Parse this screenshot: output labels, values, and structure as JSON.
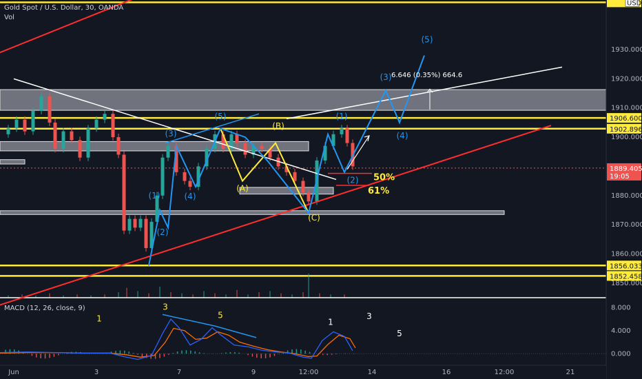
{
  "header": {
    "symbol": "Gold Spot / U.S. Dollar, 30, OANDA",
    "vol_label": "Vol",
    "macd_label": "MACD (12, 26, close, 9)"
  },
  "currency_badge": "USD",
  "chart_data": {
    "type": "line",
    "price_axis": {
      "ylim": [
        1845,
        1947
      ],
      "ticks": [
        {
          "v": 1930,
          "t": "1930.000"
        },
        {
          "v": 1920,
          "t": "1920.000"
        },
        {
          "v": 1910,
          "t": "1910.000"
        },
        {
          "v": 1900,
          "t": "1900.000"
        },
        {
          "v": 1880,
          "t": "1880.000"
        },
        {
          "v": 1870,
          "t": "1870.000"
        },
        {
          "v": 1860,
          "t": "1860.000"
        },
        {
          "v": 1850,
          "t": "1850.000"
        }
      ]
    },
    "macd_axis": {
      "ylim": [
        -2,
        9
      ],
      "ticks": [
        {
          "v": 8,
          "t": "8.000"
        },
        {
          "v": 4,
          "t": "4.000"
        },
        {
          "v": 0,
          "t": "0.000"
        }
      ]
    },
    "time_axis": [
      {
        "x": 0.5,
        "t": "Jun"
      },
      {
        "x": 3.5,
        "t": "3"
      },
      {
        "x": 6.5,
        "t": "7"
      },
      {
        "x": 9.2,
        "t": "9"
      },
      {
        "x": 11.2,
        "t": "12:00"
      },
      {
        "x": 13.5,
        "t": "14"
      },
      {
        "x": 16.2,
        "t": "16"
      },
      {
        "x": 18.3,
        "t": "12:00"
      },
      {
        "x": 20.7,
        "t": "21"
      }
    ],
    "x_range": [
      0,
      22
    ],
    "horizontal_levels": [
      {
        "price": 1946.2,
        "label": "",
        "color": "#ffeb3b"
      },
      {
        "price": 1906.6,
        "label": "1906.600",
        "color": "#ffeb3b"
      },
      {
        "price": 1902.896,
        "label": "1902.896",
        "color": "#ffeb3b"
      },
      {
        "price": 1856.033,
        "label": "1856.033",
        "color": "#ffeb3b"
      },
      {
        "price": 1852.458,
        "label": "1852.458",
        "color": "#ffeb3b"
      }
    ],
    "current_price": {
      "value": 1889.405,
      "label": "1889.405",
      "timer": "19:05"
    },
    "zones": [
      {
        "x0": 0,
        "x1": 22.2,
        "top": 1916.3,
        "bottom": 1909.2
      },
      {
        "x0": 0,
        "x1": 11.2,
        "top": 1898.5,
        "bottom": 1895.3
      },
      {
        "x0": 8.7,
        "x1": 12.1,
        "top": 1882.8,
        "bottom": 1880.5
      },
      {
        "x0": 0,
        "x1": 18.3,
        "top": 1874.8,
        "bottom": 1873.5
      },
      {
        "x0": 0,
        "x1": 0.9,
        "top": 1892.3,
        "bottom": 1890.8
      }
    ],
    "price_series": [
      [
        0.0,
        1901
      ],
      [
        0.3,
        1903
      ],
      [
        0.6,
        1906
      ],
      [
        0.9,
        1902
      ],
      [
        1.2,
        1909
      ],
      [
        1.5,
        1914
      ],
      [
        1.8,
        1905
      ],
      [
        2.0,
        1896
      ],
      [
        2.3,
        1902
      ],
      [
        2.6,
        1899
      ],
      [
        2.9,
        1893
      ],
      [
        3.2,
        1903
      ],
      [
        3.5,
        1906
      ],
      [
        3.8,
        1908
      ],
      [
        4.1,
        1900
      ],
      [
        4.3,
        1894
      ],
      [
        4.5,
        1868
      ],
      [
        4.7,
        1872
      ],
      [
        4.9,
        1869
      ],
      [
        5.1,
        1872
      ],
      [
        5.3,
        1862
      ],
      [
        5.5,
        1871
      ],
      [
        5.7,
        1880
      ],
      [
        5.9,
        1893
      ],
      [
        6.1,
        1897
      ],
      [
        6.4,
        1888
      ],
      [
        6.7,
        1885
      ],
      [
        6.9,
        1883
      ],
      [
        7.2,
        1890
      ],
      [
        7.5,
        1896
      ],
      [
        7.8,
        1901
      ],
      [
        8.1,
        1896
      ],
      [
        8.4,
        1901
      ],
      [
        8.6,
        1898
      ],
      [
        8.9,
        1894
      ],
      [
        9.2,
        1897
      ],
      [
        9.5,
        1896
      ],
      [
        9.8,
        1893
      ],
      [
        10.1,
        1890
      ],
      [
        10.4,
        1888
      ],
      [
        10.7,
        1885
      ],
      [
        11.0,
        1881
      ],
      [
        11.2,
        1878
      ],
      [
        11.5,
        1892
      ],
      [
        11.8,
        1897
      ],
      [
        12.1,
        1901
      ],
      [
        12.4,
        1903
      ],
      [
        12.6,
        1898
      ],
      [
        12.8,
        1890
      ]
    ],
    "volume_series": [
      [
        0.3,
        2
      ],
      [
        0.8,
        3
      ],
      [
        1.3,
        2
      ],
      [
        1.8,
        4
      ],
      [
        2.3,
        2
      ],
      [
        2.8,
        3
      ],
      [
        3.3,
        2
      ],
      [
        3.8,
        3
      ],
      [
        4.3,
        5
      ],
      [
        4.6,
        9
      ],
      [
        5.0,
        6
      ],
      [
        5.4,
        4
      ],
      [
        5.8,
        10
      ],
      [
        6.2,
        5
      ],
      [
        6.6,
        4
      ],
      [
        7.0,
        3
      ],
      [
        7.4,
        6
      ],
      [
        7.8,
        4
      ],
      [
        8.2,
        3
      ],
      [
        8.6,
        7
      ],
      [
        9.0,
        3
      ],
      [
        9.4,
        5
      ],
      [
        9.8,
        6
      ],
      [
        10.2,
        4
      ],
      [
        10.6,
        3
      ],
      [
        11.0,
        5
      ],
      [
        11.2,
        22
      ],
      [
        11.6,
        4
      ],
      [
        12.0,
        3
      ],
      [
        12.5,
        3
      ]
    ],
    "macd_line": [
      [
        0.0,
        0.2
      ],
      [
        1.0,
        0.3
      ],
      [
        2.0,
        0.2
      ],
      [
        3.0,
        0.1
      ],
      [
        4.0,
        0.1
      ],
      [
        4.5,
        -0.5
      ],
      [
        5.0,
        -1.0
      ],
      [
        5.5,
        -0.3
      ],
      [
        5.9,
        3.5
      ],
      [
        6.2,
        6.0
      ],
      [
        6.5,
        4.5
      ],
      [
        6.9,
        1.5
      ],
      [
        7.3,
        2.5
      ],
      [
        7.7,
        4.5
      ],
      [
        8.0,
        3.3
      ],
      [
        8.5,
        1.5
      ],
      [
        9.0,
        1.2
      ],
      [
        9.5,
        0.6
      ],
      [
        10.0,
        0.3
      ],
      [
        10.5,
        0.1
      ],
      [
        11.0,
        -0.6
      ],
      [
        11.3,
        -0.8
      ],
      [
        11.7,
        2.3
      ],
      [
        12.1,
        3.8
      ],
      [
        12.5,
        3.0
      ],
      [
        12.8,
        0.5
      ]
    ],
    "signal_line": [
      [
        0.0,
        0.1
      ],
      [
        1.0,
        0.2
      ],
      [
        2.0,
        0.2
      ],
      [
        3.0,
        0.1
      ],
      [
        4.0,
        0.1
      ],
      [
        4.6,
        -0.2
      ],
      [
        5.1,
        -0.6
      ],
      [
        5.6,
        -0.3
      ],
      [
        6.0,
        2.0
      ],
      [
        6.3,
        4.4
      ],
      [
        6.7,
        4.0
      ],
      [
        7.1,
        2.5
      ],
      [
        7.5,
        2.7
      ],
      [
        7.9,
        3.8
      ],
      [
        8.3,
        3.2
      ],
      [
        8.7,
        2.0
      ],
      [
        9.2,
        1.3
      ],
      [
        9.7,
        0.7
      ],
      [
        10.2,
        0.3
      ],
      [
        10.7,
        0.0
      ],
      [
        11.2,
        -0.5
      ],
      [
        11.5,
        -0.4
      ],
      [
        11.9,
        1.6
      ],
      [
        12.3,
        3.2
      ],
      [
        12.7,
        2.6
      ],
      [
        12.9,
        1.0
      ]
    ],
    "trendlines": [
      {
        "color": "#ff2d2d",
        "width": 2,
        "pts": [
          [
            0.0,
            1929
          ],
          [
            5.0,
            1948
          ]
        ]
      },
      {
        "color": "#ff2d2d",
        "width": 2,
        "pts": [
          [
            0.0,
            1842.5
          ],
          [
            20.0,
            1904
          ]
        ]
      },
      {
        "color": "#ffffff",
        "width": 1.5,
        "pts": [
          [
            0.5,
            1920
          ],
          [
            12.2,
            1885.5
          ]
        ]
      },
      {
        "color": "#ffffff",
        "width": 1.5,
        "pts": [
          [
            10.4,
            1906.3
          ],
          [
            20.4,
            1924
          ]
        ]
      },
      {
        "color": "#2196f3",
        "width": 1.5,
        "pts": [
          [
            6.0,
            1898
          ],
          [
            9.4,
            1908
          ]
        ]
      }
    ],
    "blue_wave_path": [
      [
        5.4,
        1856
      ],
      [
        5.8,
        1875
      ],
      [
        6.1,
        1869
      ],
      [
        6.4,
        1897
      ],
      [
        7.1,
        1883
      ],
      [
        8.0,
        1903
      ],
      [
        8.9,
        1900
      ],
      [
        9.7,
        1892
      ],
      [
        11.2,
        1874
      ],
      [
        11.9,
        1901
      ],
      [
        12.5,
        1888
      ],
      [
        14.0,
        1916
      ],
      [
        14.5,
        1905
      ],
      [
        15.4,
        1928
      ]
    ],
    "white_arrow": [
      [
        12.6,
        1889
      ],
      [
        13.4,
        1900.5
      ]
    ],
    "yellow_abc_path": [
      [
        8.0,
        1903
      ],
      [
        8.8,
        1885
      ],
      [
        10.0,
        1898
      ],
      [
        11.2,
        1874
      ]
    ],
    "target_arrow": {
      "x": 15.6,
      "from": 1909.5,
      "to": 1916.5
    },
    "fib_marks": [
      {
        "price": 1887.6,
        "x0": 11.9,
        "x1": 13.5,
        "label": "50%"
      },
      {
        "price": 1883.5,
        "x0": 12.2,
        "x1": 13.4,
        "label": "61%"
      }
    ],
    "measure_text": "6.646 (0.35%) 664.6",
    "wave_labels": [
      {
        "t": "(1)",
        "x": 5.6,
        "p": 1879,
        "c": "#2196f3"
      },
      {
        "t": "(2)",
        "x": 5.9,
        "p": 1866.5,
        "c": "#2196f3"
      },
      {
        "t": "(3)",
        "x": 6.2,
        "p": 1900.2,
        "c": "#2196f3"
      },
      {
        "t": "(4)",
        "x": 6.9,
        "p": 1878.8,
        "c": "#2196f3"
      },
      {
        "t": "(5)",
        "x": 8.0,
        "p": 1906.2,
        "c": "#2196f3"
      },
      {
        "t": "(A)",
        "x": 8.8,
        "p": 1881.5,
        "c": "#ffeb3b"
      },
      {
        "t": "(B)",
        "x": 10.1,
        "p": 1902.8,
        "c": "#ffeb3b"
      },
      {
        "t": "(C)",
        "x": 11.4,
        "p": 1871.4,
        "c": "#ffeb3b"
      },
      {
        "t": "(1)",
        "x": 12.4,
        "p": 1906.1,
        "c": "#2196f3"
      },
      {
        "t": "(2)",
        "x": 12.8,
        "p": 1884.3,
        "c": "#2196f3"
      },
      {
        "t": "(3)",
        "x": 14.0,
        "p": 1919.6,
        "c": "#2196f3"
      },
      {
        "t": "(4)",
        "x": 14.6,
        "p": 1899.6,
        "c": "#2196f3"
      },
      {
        "t": "(5)",
        "x": 15.5,
        "p": 1932.5,
        "c": "#2196f3"
      }
    ],
    "macd_numbers": [
      {
        "t": "1",
        "x": 3.6,
        "v": 5.6,
        "c": "#ffeb3b"
      },
      {
        "t": "3",
        "x": 6.0,
        "v": 7.6,
        "c": "#ffeb3b"
      },
      {
        "t": "5",
        "x": 8.0,
        "v": 6.2,
        "c": "#ffeb3b"
      },
      {
        "t": "1",
        "x": 12.0,
        "v": 5.0,
        "c": "#ffffff"
      },
      {
        "t": "3",
        "x": 13.4,
        "v": 6.0,
        "c": "#ffffff"
      },
      {
        "t": "5",
        "x": 14.5,
        "v": 3.0,
        "c": "#ffffff"
      }
    ],
    "macd_divergence": [
      [
        5.9,
        6.8
      ],
      [
        7.8,
        4.8
      ],
      [
        9.3,
        2.8
      ]
    ]
  },
  "colors": {
    "background": "#131722",
    "yellow": "#ffeb3b",
    "red": "#ff2d2d",
    "blue": "#2196f3",
    "candle_up": "#26a69a",
    "candle_down": "#ef5350",
    "macd": "#2962ff",
    "signal": "#ff6d00"
  }
}
